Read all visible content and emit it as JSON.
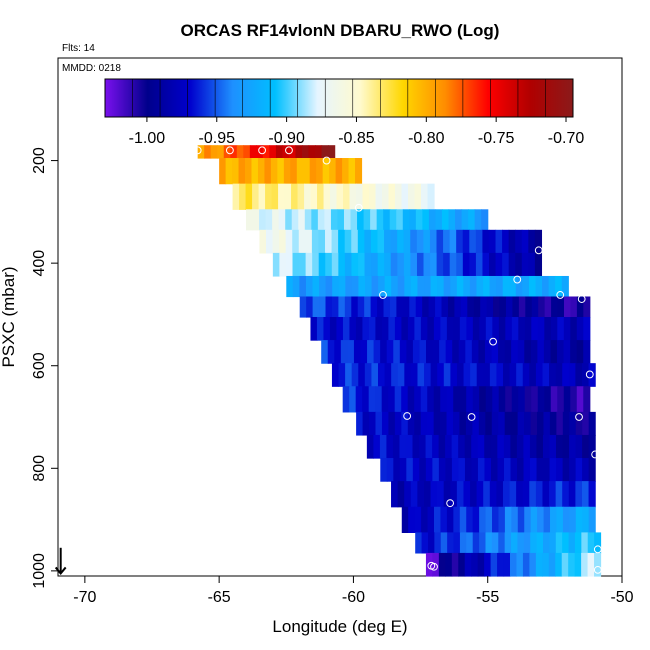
{
  "chart_data": {
    "type": "heatmap",
    "title": "ORCAS RF14vlonN DBARU_RWO (Log)",
    "flights_label": "Flts: 14",
    "date_label": "MMDD: 0218",
    "xlabel": "Longitude (deg E)",
    "ylabel": "PSXC (mbar)",
    "xlim": [
      -71,
      -50
    ],
    "ylim": [
      1010,
      0
    ],
    "x_ticks": [
      -70,
      -65,
      -60,
      -55,
      -50
    ],
    "x_tick_labels": [
      "-70",
      "-65",
      "-60",
      "-55",
      "-50"
    ],
    "y_ticks": [
      200,
      400,
      600,
      800,
      1000
    ],
    "y_tick_labels": [
      "200",
      "400",
      "600",
      "800",
      "1000"
    ],
    "colorbar": {
      "range": [
        -1.03,
        -0.695
      ],
      "ticks": [
        -1.0,
        -0.95,
        -0.9,
        -0.85,
        -0.8,
        -0.75,
        -0.7
      ],
      "tick_labels": [
        "-1.00",
        "-0.95",
        "-0.90",
        "-0.85",
        "-0.80",
        "-0.75",
        "-0.70"
      ],
      "stops": [
        "#7a10ee",
        "#00008b",
        "#0000cd",
        "#1e90ff",
        "#00bfff",
        "#e6f5ff",
        "#fffacd",
        "#ffd700",
        "#ff8c00",
        "#ff0000",
        "#b00000",
        "#8b1a1a"
      ]
    },
    "bands": [
      {
        "p_top": 170,
        "p_bot": 195,
        "x_start": -65.8,
        "x_end": -60.7,
        "v_start": -0.8,
        "v_end": -0.7
      },
      {
        "p_top": 195,
        "p_bot": 245,
        "x_start": -65.0,
        "x_end": -59.7,
        "v_start": -0.8,
        "v_end": -0.8
      },
      {
        "p_top": 245,
        "p_bot": 295,
        "x_start": -64.5,
        "x_end": -57.0,
        "v_start": -0.83,
        "v_end": -0.87
      },
      {
        "p_top": 295,
        "p_bot": 335,
        "x_start": -64.0,
        "x_end": -55.0,
        "v_start": -0.87,
        "v_end": -0.93
      },
      {
        "p_top": 335,
        "p_bot": 380,
        "x_start": -63.5,
        "x_end": -53.0,
        "v_start": -0.86,
        "v_end": -0.99
      },
      {
        "p_top": 380,
        "p_bot": 425,
        "x_start": -63.0,
        "x_end": -53.0,
        "v_start": -0.88,
        "v_end": -0.99
      },
      {
        "p_top": 425,
        "p_bot": 465,
        "x_start": -62.5,
        "x_end": -52.0,
        "v_start": -0.93,
        "v_end": -0.92
      },
      {
        "p_top": 465,
        "p_bot": 505,
        "x_start": -62.0,
        "x_end": -51.2,
        "v_start": -0.95,
        "v_end": -1.01
      },
      {
        "p_top": 505,
        "p_bot": 550,
        "x_start": -61.6,
        "x_end": -51.2,
        "v_start": -0.97,
        "v_end": -0.98
      },
      {
        "p_top": 550,
        "p_bot": 595,
        "x_start": -61.2,
        "x_end": -51.2,
        "v_start": -0.96,
        "v_end": -0.99
      },
      {
        "p_top": 595,
        "p_bot": 640,
        "x_start": -60.8,
        "x_end": -51.0,
        "v_start": -0.96,
        "v_end": -0.98
      },
      {
        "p_top": 640,
        "p_bot": 690,
        "x_start": -60.4,
        "x_end": -51.2,
        "v_start": -0.96,
        "v_end": -1.01
      },
      {
        "p_top": 690,
        "p_bot": 735,
        "x_start": -59.9,
        "x_end": -51.0,
        "v_start": -0.97,
        "v_end": -1.0
      },
      {
        "p_top": 735,
        "p_bot": 780,
        "x_start": -59.5,
        "x_end": -51.0,
        "v_start": -0.97,
        "v_end": -0.99
      },
      {
        "p_top": 780,
        "p_bot": 825,
        "x_start": -59.0,
        "x_end": -51.0,
        "v_start": -0.97,
        "v_end": -0.98
      },
      {
        "p_top": 825,
        "p_bot": 875,
        "x_start": -58.6,
        "x_end": -51.0,
        "v_start": -0.98,
        "v_end": -0.96
      },
      {
        "p_top": 875,
        "p_bot": 925,
        "x_start": -58.2,
        "x_end": -51.0,
        "v_start": -0.98,
        "v_end": -0.92
      },
      {
        "p_top": 925,
        "p_bot": 965,
        "x_start": -57.7,
        "x_end": -50.8,
        "v_start": -0.97,
        "v_end": -0.9
      },
      {
        "p_top": 965,
        "p_bot": 1010,
        "x_start": -57.3,
        "x_end": -50.8,
        "v_start": -1.02,
        "v_end": -0.88
      }
    ],
    "markers": [
      {
        "lon": -65.8,
        "p": 180
      },
      {
        "lon": -64.6,
        "p": 180
      },
      {
        "lon": -63.4,
        "p": 180
      },
      {
        "lon": -62.4,
        "p": 180
      },
      {
        "lon": -61.0,
        "p": 200
      },
      {
        "lon": -59.8,
        "p": 292
      },
      {
        "lon": -53.1,
        "p": 375
      },
      {
        "lon": -53.9,
        "p": 432
      },
      {
        "lon": -58.9,
        "p": 462
      },
      {
        "lon": -52.3,
        "p": 462
      },
      {
        "lon": -51.5,
        "p": 470
      },
      {
        "lon": -54.8,
        "p": 553
      },
      {
        "lon": -51.2,
        "p": 617
      },
      {
        "lon": -58.0,
        "p": 698
      },
      {
        "lon": -55.6,
        "p": 700
      },
      {
        "lon": -51.6,
        "p": 700
      },
      {
        "lon": -51.0,
        "p": 773
      },
      {
        "lon": -56.4,
        "p": 868
      },
      {
        "lon": -50.9,
        "p": 958
      },
      {
        "lon": -57.1,
        "p": 990
      },
      {
        "lon": -57.0,
        "p": 992
      },
      {
        "lon": -57.5,
        "p": 998
      },
      {
        "lon": -50.9,
        "p": 998
      }
    ],
    "arrow": {
      "lon": -70.9,
      "p_start": 955,
      "p_end": 1005
    }
  }
}
